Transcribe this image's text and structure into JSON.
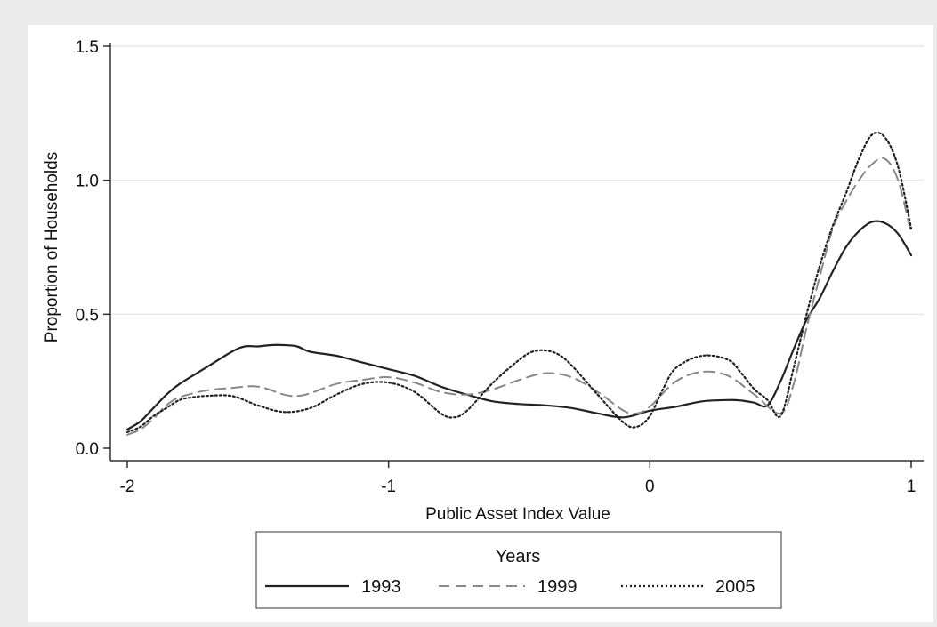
{
  "chart_data": {
    "type": "line",
    "title": "",
    "xlabel": "Public Asset Index Value",
    "ylabel": "Proportion of Households",
    "xlim": [
      -2,
      1
    ],
    "ylim": [
      0,
      1.5
    ],
    "x_ticks": [
      -2,
      -1,
      0,
      1
    ],
    "x_tick_labels": [
      "-2",
      "-1",
      "0",
      "1"
    ],
    "y_ticks": [
      0,
      0.5,
      1,
      1.5
    ],
    "y_tick_labels": [
      "0.0",
      "0.5",
      "1.0",
      "1.5"
    ],
    "grid": "horizontal",
    "legend": {
      "title": "Years",
      "position": "bottom"
    },
    "series": [
      {
        "name": "1993",
        "style": "solid",
        "color": "#222222",
        "x": [
          -2,
          -1.95,
          -1.9,
          -1.85,
          -1.8,
          -1.7,
          -1.6,
          -1.55,
          -1.5,
          -1.45,
          -1.4,
          -1.35,
          -1.3,
          -1.2,
          -1.1,
          -1.0,
          -0.9,
          -0.8,
          -0.7,
          -0.6,
          -0.5,
          -0.4,
          -0.3,
          -0.2,
          -0.1,
          0.0,
          0.1,
          0.2,
          0.3,
          0.35,
          0.4,
          0.45,
          0.5,
          0.55,
          0.6,
          0.65,
          0.7,
          0.75,
          0.8,
          0.85,
          0.9,
          0.95,
          1.0
        ],
        "y": [
          0.07,
          0.1,
          0.15,
          0.2,
          0.24,
          0.3,
          0.36,
          0.38,
          0.38,
          0.385,
          0.385,
          0.38,
          0.36,
          0.345,
          0.32,
          0.295,
          0.27,
          0.23,
          0.2,
          0.175,
          0.165,
          0.16,
          0.15,
          0.13,
          0.115,
          0.14,
          0.155,
          0.175,
          0.18,
          0.178,
          0.17,
          0.16,
          0.25,
          0.37,
          0.48,
          0.56,
          0.66,
          0.75,
          0.81,
          0.845,
          0.84,
          0.8,
          0.72
        ]
      },
      {
        "name": "1999",
        "style": "dashed",
        "color": "#888888",
        "x": [
          -2,
          -1.95,
          -1.9,
          -1.85,
          -1.8,
          -1.7,
          -1.6,
          -1.5,
          -1.4,
          -1.35,
          -1.3,
          -1.2,
          -1.1,
          -1.0,
          -0.9,
          -0.8,
          -0.7,
          -0.6,
          -0.5,
          -0.4,
          -0.3,
          -0.2,
          -0.1,
          -0.05,
          0.0,
          0.1,
          0.2,
          0.3,
          0.4,
          0.5,
          0.55,
          0.6,
          0.65,
          0.7,
          0.75,
          0.8,
          0.85,
          0.9,
          0.95,
          1.0
        ],
        "y": [
          0.05,
          0.07,
          0.11,
          0.16,
          0.19,
          0.215,
          0.225,
          0.23,
          0.2,
          0.195,
          0.205,
          0.24,
          0.255,
          0.265,
          0.245,
          0.21,
          0.2,
          0.22,
          0.255,
          0.28,
          0.265,
          0.21,
          0.14,
          0.13,
          0.155,
          0.25,
          0.285,
          0.27,
          0.2,
          0.13,
          0.24,
          0.45,
          0.64,
          0.82,
          0.92,
          1.0,
          1.06,
          1.08,
          1.0,
          0.8
        ]
      },
      {
        "name": "2005",
        "style": "dotted",
        "color": "#222222",
        "x": [
          -2,
          -1.95,
          -1.9,
          -1.85,
          -1.8,
          -1.75,
          -1.7,
          -1.6,
          -1.5,
          -1.4,
          -1.3,
          -1.2,
          -1.1,
          -1.0,
          -0.9,
          -0.8,
          -0.75,
          -0.7,
          -0.6,
          -0.5,
          -0.45,
          -0.4,
          -0.35,
          -0.3,
          -0.2,
          -0.1,
          -0.05,
          0.0,
          0.05,
          0.1,
          0.2,
          0.3,
          0.35,
          0.4,
          0.45,
          0.5,
          0.55,
          0.6,
          0.65,
          0.7,
          0.75,
          0.8,
          0.85,
          0.9,
          0.95,
          1.0
        ],
        "y": [
          0.06,
          0.08,
          0.12,
          0.15,
          0.18,
          0.19,
          0.195,
          0.195,
          0.16,
          0.135,
          0.15,
          0.2,
          0.24,
          0.245,
          0.21,
          0.13,
          0.115,
          0.14,
          0.245,
          0.33,
          0.36,
          0.365,
          0.35,
          0.31,
          0.2,
          0.095,
          0.08,
          0.12,
          0.22,
          0.3,
          0.345,
          0.33,
          0.28,
          0.22,
          0.18,
          0.12,
          0.3,
          0.5,
          0.68,
          0.83,
          0.95,
          1.08,
          1.17,
          1.16,
          1.05,
          0.82
        ]
      }
    ]
  }
}
